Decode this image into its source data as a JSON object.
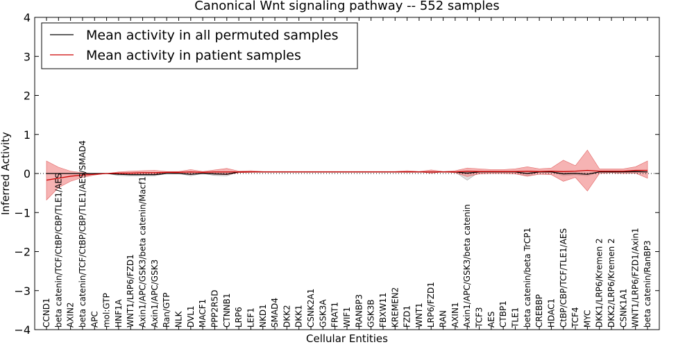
{
  "chart_data": {
    "type": "line",
    "title": "Canonical Wnt signaling pathway -- 552 samples",
    "xlabel": "Cellular Entities",
    "ylabel": "Inferred Activity",
    "ylim": [
      -4,
      4
    ],
    "yticks": [
      -4,
      -3,
      -2,
      -1,
      0,
      1,
      2,
      3,
      4
    ],
    "ytick_labels": [
      "−4",
      "−3",
      "−2",
      "−1",
      "0",
      "1",
      "2",
      "3",
      "4"
    ],
    "grid": false,
    "legend_position": "top-left",
    "zero_line": "dotted",
    "categories": [
      "CCND1",
      "beta catenin/TCF/CtBP/CBP/TLE1/AES",
      "AXIN2",
      "beta catenin/TCF/CtBP/CBP/TLE1/AES/SMAD4",
      "APC",
      "mol:GTP",
      "HNF1A",
      "WNT1/LRP6/FZD1",
      "Axin1/APC/GSK3/beta catenin/Macf1",
      "Axin1/APC/GSK3",
      "Ran/GTP",
      "NLK",
      "DVL1",
      "MACF1",
      "PPP2R5D",
      "CTNNB1",
      "LRP6",
      "LEF1",
      "NKD1",
      "SMAD4",
      "DKK2",
      "DKK1",
      "CSNK2A1",
      "GSK3A",
      "FRAT1",
      "WIF1",
      "RANBP3",
      "GSK3B",
      "FBXW11",
      "KREMEN2",
      "FZD1",
      "WNT1",
      "LRP6/FZD1",
      "RAN",
      "AXIN1",
      "Axin1/APC/GSK3/beta catenin",
      "TCF3",
      "AES",
      "CTBP1",
      "TLE1",
      "beta catenin/beta TrCP1",
      "CREBBP",
      "HDAC1",
      "CtBP/CBP/TCF/TLE1/AES",
      "TCF4",
      "MYC",
      "DKK1/LRP6/Kremen 2",
      "DKK2/LRP6/Kremen 2",
      "CSNK1A1",
      "WNT1/LRP6/FZD1/Axin1",
      "beta catenin/RanBP3"
    ],
    "series": [
      {
        "name": "Mean activity in all permuted samples",
        "color": "#000000",
        "values": [
          0,
          0,
          0,
          0,
          0,
          0,
          -0.02,
          -0.03,
          -0.03,
          -0.03,
          0.0,
          0.0,
          -0.02,
          0.0,
          -0.01,
          -0.02,
          0.04,
          0.04,
          0.04,
          0.04,
          0.04,
          0.04,
          0.04,
          0.04,
          0.04,
          0.04,
          0.04,
          0.04,
          0.04,
          0.04,
          0.04,
          0.04,
          0.04,
          0.04,
          0.04,
          0.01,
          0.04,
          0.04,
          0.04,
          0.04,
          0.0,
          0.04,
          0.04,
          -0.01,
          0.0,
          -0.02,
          0.04,
          0.04,
          0.04,
          0.05,
          0.04
        ],
        "band_lower": [
          0,
          0,
          0,
          0,
          0,
          0,
          -0.05,
          -0.06,
          -0.06,
          -0.06,
          0.0,
          0.0,
          -0.06,
          0.0,
          -0.05,
          -0.06,
          0.04,
          0.04,
          0.04,
          0.04,
          0.04,
          0.04,
          0.04,
          0.04,
          0.04,
          0.04,
          0.04,
          0.04,
          0.04,
          0.04,
          0.04,
          0.04,
          0.04,
          0.04,
          0.04,
          -0.17,
          0.04,
          0.04,
          0.04,
          0.04,
          -0.07,
          0.04,
          0.04,
          -0.06,
          -0.03,
          -0.06,
          0.04,
          0.04,
          0.04,
          0.02,
          0.04
        ],
        "band_upper": [
          0,
          0,
          0,
          0,
          0,
          0,
          0.01,
          0.01,
          0.01,
          0.01,
          0.0,
          0.0,
          0.02,
          0.0,
          0.03,
          0.02,
          0.04,
          0.04,
          0.04,
          0.04,
          0.04,
          0.04,
          0.04,
          0.04,
          0.04,
          0.04,
          0.04,
          0.04,
          0.04,
          0.04,
          0.04,
          0.04,
          0.04,
          0.04,
          0.04,
          0.04,
          0.04,
          0.04,
          0.04,
          0.04,
          0.04,
          0.04,
          0.04,
          0.04,
          0.03,
          0.02,
          0.04,
          0.04,
          0.04,
          0.08,
          0.04
        ]
      },
      {
        "name": "Mean activity in patient samples",
        "color": "#cc0000",
        "band_color": "#f08080",
        "values": [
          -0.17,
          -0.12,
          -0.07,
          -0.04,
          -0.02,
          0.0,
          0.01,
          0.01,
          0.02,
          0.02,
          0.03,
          0.03,
          0.04,
          0.03,
          0.04,
          0.04,
          0.04,
          0.04,
          0.04,
          0.04,
          0.04,
          0.04,
          0.04,
          0.04,
          0.04,
          0.04,
          0.04,
          0.04,
          0.04,
          0.04,
          0.04,
          0.04,
          0.04,
          0.04,
          0.04,
          0.06,
          0.05,
          0.05,
          0.05,
          0.05,
          0.06,
          0.05,
          0.06,
          0.05,
          0.06,
          0.08,
          0.06,
          0.06,
          0.06,
          0.08,
          0.08
        ],
        "band_lower": [
          -0.68,
          -0.36,
          -0.2,
          -0.1,
          -0.04,
          0.0,
          -0.02,
          -0.03,
          -0.03,
          -0.02,
          0.02,
          0.01,
          -0.03,
          0.02,
          -0.02,
          -0.03,
          0.02,
          0.03,
          0.04,
          0.04,
          0.04,
          0.04,
          0.04,
          0.04,
          0.04,
          0.04,
          0.04,
          0.04,
          0.04,
          0.04,
          0.03,
          0.04,
          0.01,
          0.04,
          0.02,
          -0.08,
          -0.01,
          0.0,
          0.0,
          -0.01,
          -0.07,
          -0.02,
          -0.03,
          -0.2,
          -0.1,
          -0.45,
          0.0,
          0.02,
          0.0,
          0.01,
          -0.12
        ],
        "band_upper": [
          0.32,
          0.16,
          0.06,
          0.02,
          0.0,
          0.0,
          0.04,
          0.06,
          0.07,
          0.08,
          0.05,
          0.05,
          0.1,
          0.05,
          0.09,
          0.13,
          0.06,
          0.07,
          0.05,
          0.05,
          0.05,
          0.05,
          0.05,
          0.05,
          0.05,
          0.05,
          0.05,
          0.05,
          0.05,
          0.05,
          0.07,
          0.05,
          0.09,
          0.05,
          0.07,
          0.14,
          0.12,
          0.1,
          0.1,
          0.12,
          0.17,
          0.12,
          0.14,
          0.34,
          0.2,
          0.6,
          0.12,
          0.12,
          0.12,
          0.17,
          0.32
        ]
      }
    ]
  }
}
